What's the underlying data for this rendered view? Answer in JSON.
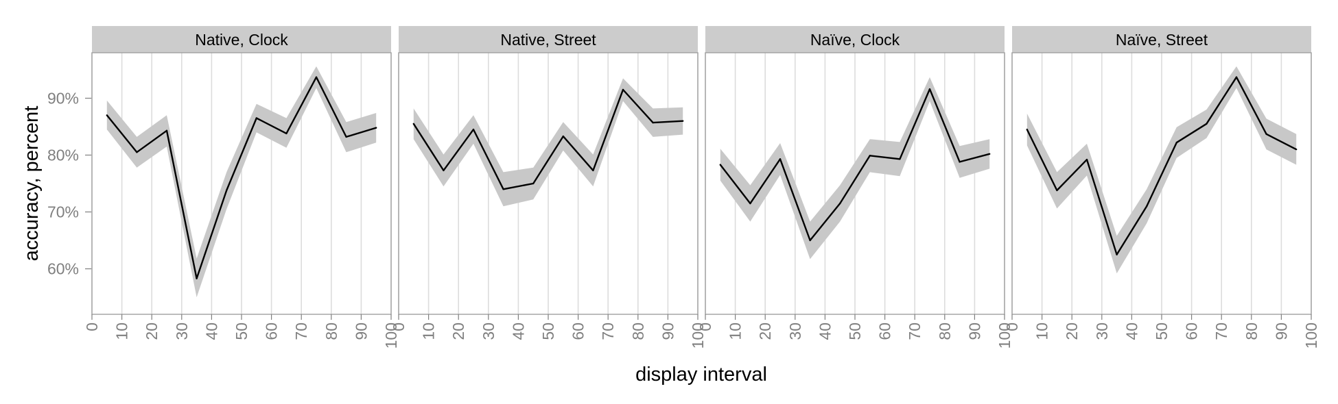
{
  "chart_data": {
    "type": "line",
    "xlabel": "display interval",
    "ylabel": "accuracy, percent",
    "xlim": [
      0,
      100
    ],
    "ylim": [
      52,
      98
    ],
    "x_ticks": [
      0,
      10,
      20,
      30,
      40,
      50,
      60,
      70,
      80,
      90,
      100
    ],
    "x_tick_labels": [
      "0",
      "10",
      "20",
      "30",
      "40",
      "50",
      "60",
      "70",
      "80",
      "90",
      "100"
    ],
    "y_ticks": [
      60,
      70,
      80,
      90
    ],
    "y_tick_labels": [
      "60%",
      "70%",
      "80%",
      "90%"
    ],
    "grid": true,
    "shaded_band": "confidence interval",
    "colors": {
      "line": "#000000",
      "band": "#c8c8c8",
      "strip": "#cccccc",
      "grid": "#dcdcdc",
      "tick_label": "#7f7f7f"
    },
    "panels": [
      {
        "strip_label": "Native, Clock",
        "x": [
          5,
          15,
          25,
          35,
          45,
          55,
          65,
          75,
          85,
          95
        ],
        "y": [
          87,
          80.5,
          84.3,
          58.3,
          73.8,
          86.5,
          83.8,
          93.7,
          83.2,
          84.8
        ],
        "lower": [
          84.5,
          77.8,
          81.5,
          55,
          70.5,
          84,
          81.3,
          91.8,
          80.5,
          82.2
        ],
        "upper": [
          89.6,
          83.2,
          87,
          61.8,
          77,
          89,
          86.5,
          95.6,
          85.8,
          87.4
        ]
      },
      {
        "strip_label": "Native, Street",
        "x": [
          5,
          15,
          25,
          35,
          45,
          55,
          65,
          75,
          85,
          95
        ],
        "y": [
          85.5,
          77.3,
          84.5,
          74,
          75,
          83.3,
          77.3,
          91.5,
          85.7,
          86
        ],
        "lower": [
          82.8,
          74.5,
          82,
          71,
          72.2,
          80.8,
          74.5,
          89.5,
          83.2,
          83.6
        ],
        "upper": [
          88.2,
          80.1,
          87,
          77,
          77.8,
          85.8,
          80.1,
          93.5,
          88.2,
          88.4
        ]
      },
      {
        "strip_label": "Naïve, Clock",
        "x": [
          5,
          15,
          25,
          35,
          45,
          55,
          65,
          75,
          85,
          95
        ],
        "y": [
          78.3,
          71.5,
          79.3,
          65,
          71.5,
          79.9,
          79.3,
          91.6,
          78.8,
          80.2
        ],
        "lower": [
          75.5,
          68.3,
          76.5,
          61.7,
          68.3,
          77,
          76.3,
          89.5,
          76,
          77.6
        ],
        "upper": [
          81.1,
          74.7,
          82.1,
          68.3,
          74.7,
          82.8,
          82.3,
          93.7,
          81.6,
          82.8
        ]
      },
      {
        "strip_label": "Naïve, Street",
        "x": [
          5,
          15,
          25,
          35,
          45,
          55,
          65,
          75,
          85,
          95
        ],
        "y": [
          84.5,
          73.8,
          79.2,
          62.5,
          71,
          82.2,
          85.5,
          93.7,
          83.7,
          81
        ],
        "lower": [
          81.7,
          70.6,
          76.4,
          59.2,
          68,
          79.5,
          83,
          91.8,
          81,
          78.3
        ],
        "upper": [
          87.3,
          77,
          82,
          65.8,
          74,
          84.9,
          88,
          95.6,
          86.4,
          83.7
        ]
      }
    ]
  }
}
